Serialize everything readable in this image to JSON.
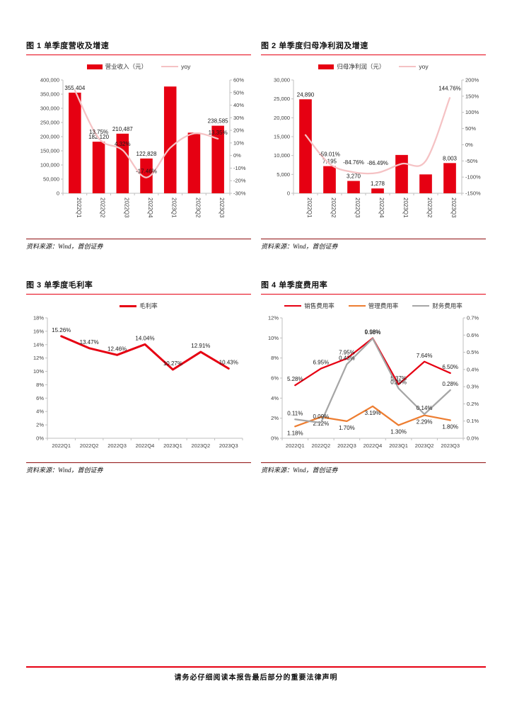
{
  "page": {
    "footer_text": "请务必仔细阅读本报告最后部分的重要法律声明",
    "accent_color": "#e60012"
  },
  "figures": [
    {
      "title": "图 1 单季度营收及增速",
      "source": "资料来源：Wind，首创证券"
    },
    {
      "title": "图 2 单季度归母净利润及增速",
      "source": "资料来源：Wind，首创证券"
    },
    {
      "title": "图 3 单季度毛利率",
      "source": "资料来源：Wind，首创证券"
    },
    {
      "title": "图 4 单季度费用率",
      "source": "资料来源：Wind，首创证券"
    }
  ],
  "chart_data": [
    {
      "type": "bar+line",
      "title": "单季度营收及增速",
      "categories": [
        "2022Q1",
        "2022Q2",
        "2022Q3",
        "2022Q4",
        "2023Q1",
        "2023Q2",
        "2023Q3"
      ],
      "left_axis": {
        "min": 0,
        "max": 400000,
        "step": 50000,
        "format": "thousands"
      },
      "right_axis": {
        "min": -30,
        "max": 60,
        "step": 10,
        "suffix": "%"
      },
      "x_label_rotation": "vertical",
      "legend_position": "top",
      "grid": false,
      "series": [
        {
          "name": "营业收入（元）",
          "type": "bar",
          "axis": "left",
          "color": "#e60012",
          "values": [
            355404,
            182120,
            210487,
            122828,
            377000,
            214000,
            238585
          ],
          "labels": [
            "355,404",
            "182,120",
            "210,487",
            "122,828",
            "",
            "",
            "238,585"
          ]
        },
        {
          "name": "yoy",
          "type": "line",
          "axis": "right",
          "color": "#f5c2c4",
          "smooth": true,
          "values": [
            51.8,
            13.75,
            4.32,
            -17.46,
            6.1,
            17.5,
            13.35
          ],
          "labels": [
            "",
            "13.75%",
            "4.32%",
            "-17.46%",
            "",
            "",
            "13.35%"
          ]
        }
      ]
    },
    {
      "type": "bar+line",
      "title": "单季度归母净利润及增速",
      "categories": [
        "2022Q1",
        "2022Q2",
        "2022Q3",
        "2022Q4",
        "2023Q1",
        "2023Q2",
        "2023Q3"
      ],
      "left_axis": {
        "min": 0,
        "max": 30000,
        "step": 5000,
        "format": "thousands"
      },
      "right_axis": {
        "min": -150,
        "max": 200,
        "step": 50,
        "suffix": "%"
      },
      "x_label_rotation": "vertical",
      "legend_position": "top",
      "grid": false,
      "series": [
        {
          "name": "归母净利润（元）",
          "type": "bar",
          "axis": "left",
          "color": "#e60012",
          "values": [
            24890,
            7195,
            3270,
            1278,
            10150,
            5000,
            8003
          ],
          "labels": [
            "24,890",
            "7,195",
            "3,270",
            "1,278",
            "",
            "",
            "8,003"
          ]
        },
        {
          "name": "yoy",
          "type": "line",
          "axis": "right",
          "color": "#f5c2c4",
          "smooth": true,
          "values": [
            30,
            -59.01,
            -84.76,
            -86.49,
            -59,
            -50,
            144.76
          ],
          "labels": [
            "",
            "-59.01%",
            "-84.76%",
            "-86.49%",
            "",
            "",
            "144.76%"
          ]
        }
      ]
    },
    {
      "type": "line",
      "title": "单季度毛利率",
      "categories": [
        "2022Q1",
        "2022Q2",
        "2022Q3",
        "2022Q4",
        "2023Q1",
        "2023Q2",
        "2023Q3"
      ],
      "left_axis": {
        "min": 0,
        "max": 18,
        "step": 2,
        "suffix": "%"
      },
      "x_label_rotation": "horizontal",
      "legend_position": "top",
      "grid": false,
      "series": [
        {
          "name": "毛利率",
          "type": "line",
          "axis": "left",
          "color": "#e60012",
          "width": 3,
          "values": [
            15.26,
            13.47,
            12.46,
            14.04,
            10.27,
            12.91,
            10.43
          ],
          "labels": [
            "15.26%",
            "13.47%",
            "12.46%",
            "14.04%",
            "10.27%",
            "12.91%",
            "10.43%"
          ]
        }
      ]
    },
    {
      "type": "line",
      "title": "单季度费用率",
      "categories": [
        "2022Q1",
        "2022Q2",
        "2022Q3",
        "2022Q4",
        "2023Q1",
        "2023Q2",
        "2023Q3"
      ],
      "left_axis": {
        "min": 0,
        "max": 12,
        "step": 2,
        "suffix": "%"
      },
      "right_axis": {
        "min": 0,
        "max": 0.7,
        "step": 0.1,
        "suffix": "%",
        "decimals": 1
      },
      "x_label_rotation": "horizontal",
      "legend_position": "top",
      "grid": false,
      "series": [
        {
          "name": "销售费用率",
          "type": "line",
          "axis": "left",
          "color": "#e60012",
          "width": 2.25,
          "values": [
            5.28,
            6.95,
            7.95,
            9.98,
            5.37,
            7.64,
            6.5
          ],
          "labels": [
            "5.28%",
            "6.95%",
            "7.95%",
            "9.98%",
            "5.37%",
            "7.64%",
            "6.50%"
          ]
        },
        {
          "name": "管理费用率",
          "type": "line",
          "axis": "left",
          "color": "#ed7d31",
          "width": 2.25,
          "values": [
            1.18,
            2.12,
            1.7,
            3.19,
            1.3,
            2.29,
            1.8
          ],
          "labels": [
            "1.18%",
            "2.12%",
            "1.70%",
            "3.19%",
            "1.30%",
            "2.29%",
            "1.80%"
          ]
        },
        {
          "name": "财务费用率",
          "type": "line",
          "axis": "right",
          "color": "#a6a6a6",
          "width": 2.25,
          "values": [
            0.11,
            0.09,
            0.43,
            0.58,
            0.29,
            0.14,
            0.28
          ],
          "labels": [
            "0.11%",
            "0.09%",
            "0.43%",
            "0.58%",
            "0.29%",
            "0.14%",
            "0.28%"
          ]
        }
      ]
    }
  ]
}
